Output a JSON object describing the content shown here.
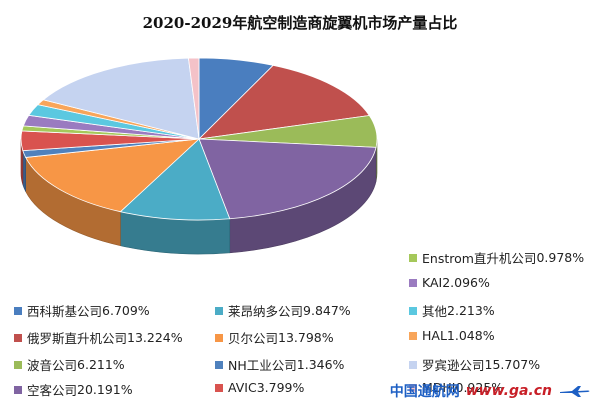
{
  "chart_data": {
    "type": "pie",
    "title": "2020-2029年航空制造商旋翼机市场产量占比",
    "style": "3d",
    "legend_position": "bottom",
    "slices": [
      {
        "label": "西科斯基公司",
        "value": 6.709,
        "display": "6.709%",
        "color": "#4a7ebf"
      },
      {
        "label": "俄罗斯直升机公司",
        "value": 13.224,
        "display": "13.224%",
        "color": "#c0504d"
      },
      {
        "label": "波音公司",
        "value": 6.211,
        "display": "6.211%",
        "color": "#9bbb59"
      },
      {
        "label": "空客公司",
        "value": 20.191,
        "display": "20.191%",
        "color": "#8064a2"
      },
      {
        "label": "莱昂纳多公司",
        "value": 9.847,
        "display": "9.847%",
        "color": "#4bacc6"
      },
      {
        "label": "贝尔公司",
        "value": 13.798,
        "display": "13.798%",
        "color": "#f79646"
      },
      {
        "label": "NH工业公司",
        "value": 1.346,
        "display": "1.346%",
        "color": "#4f81bd"
      },
      {
        "label": "AVIC",
        "value": 3.799,
        "display": "3.799%",
        "color": "#d9534f"
      },
      {
        "label": "Enstrom直升机公司",
        "value": 0.978,
        "display": "0.978%",
        "color": "#a5c85a"
      },
      {
        "label": "KAI",
        "value": 2.096,
        "display": "2.096%",
        "color": "#9a7bc0"
      },
      {
        "label": "其他",
        "value": 2.213,
        "display": "2.213%",
        "color": "#5bc8e0"
      },
      {
        "label": "HAL",
        "value": 1.048,
        "display": "1.048%",
        "color": "#f8a55a"
      },
      {
        "label": "罗宾逊公司",
        "value": 15.707,
        "display": "15.707%",
        "color": "#c5d3f0"
      },
      {
        "label": "MDHI",
        "value": 0.925,
        "display": "0.925%",
        "color": "#f4c2c8"
      }
    ]
  },
  "watermark": {
    "brand": "中国通航网",
    "url": "www.ga.cn",
    "icon": "airplane-icon"
  }
}
